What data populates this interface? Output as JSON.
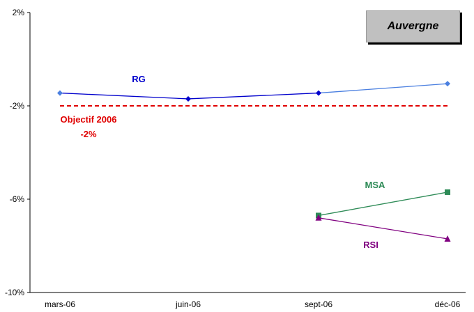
{
  "chart_data": {
    "type": "line",
    "title": "Auvergne",
    "categories": [
      "mars-06",
      "juin-06",
      "sept-06",
      "déc-06"
    ],
    "ylim": [
      -10,
      2
    ],
    "yticks": [
      2,
      -2,
      -6,
      -10
    ],
    "ytick_labels": [
      "2%",
      "-2%",
      "-6%",
      "-10%"
    ],
    "grid": false,
    "series": [
      {
        "name": "RG",
        "color": "#0000cc",
        "marker": "diamond",
        "values": [
          -1.45,
          -1.7,
          -1.45,
          -1.05
        ],
        "segment_colors": [
          "#0000cc",
          "#0000cc",
          "#4a7fe0"
        ],
        "marker_colors": [
          "#4a7fe0",
          "#0000cc",
          "#0000cc",
          "#4a7fe0"
        ]
      },
      {
        "name": "MSA",
        "color": "#2e8b57",
        "marker": "square",
        "values": [
          null,
          null,
          -6.7,
          -5.7
        ]
      },
      {
        "name": "RSI",
        "color": "#800080",
        "marker": "triangle",
        "values": [
          null,
          null,
          -6.8,
          -7.7
        ]
      }
    ],
    "reference_line": {
      "label": "Objectif 2006",
      "value_label": "-2%",
      "value": -2,
      "color": "#e00000"
    }
  }
}
